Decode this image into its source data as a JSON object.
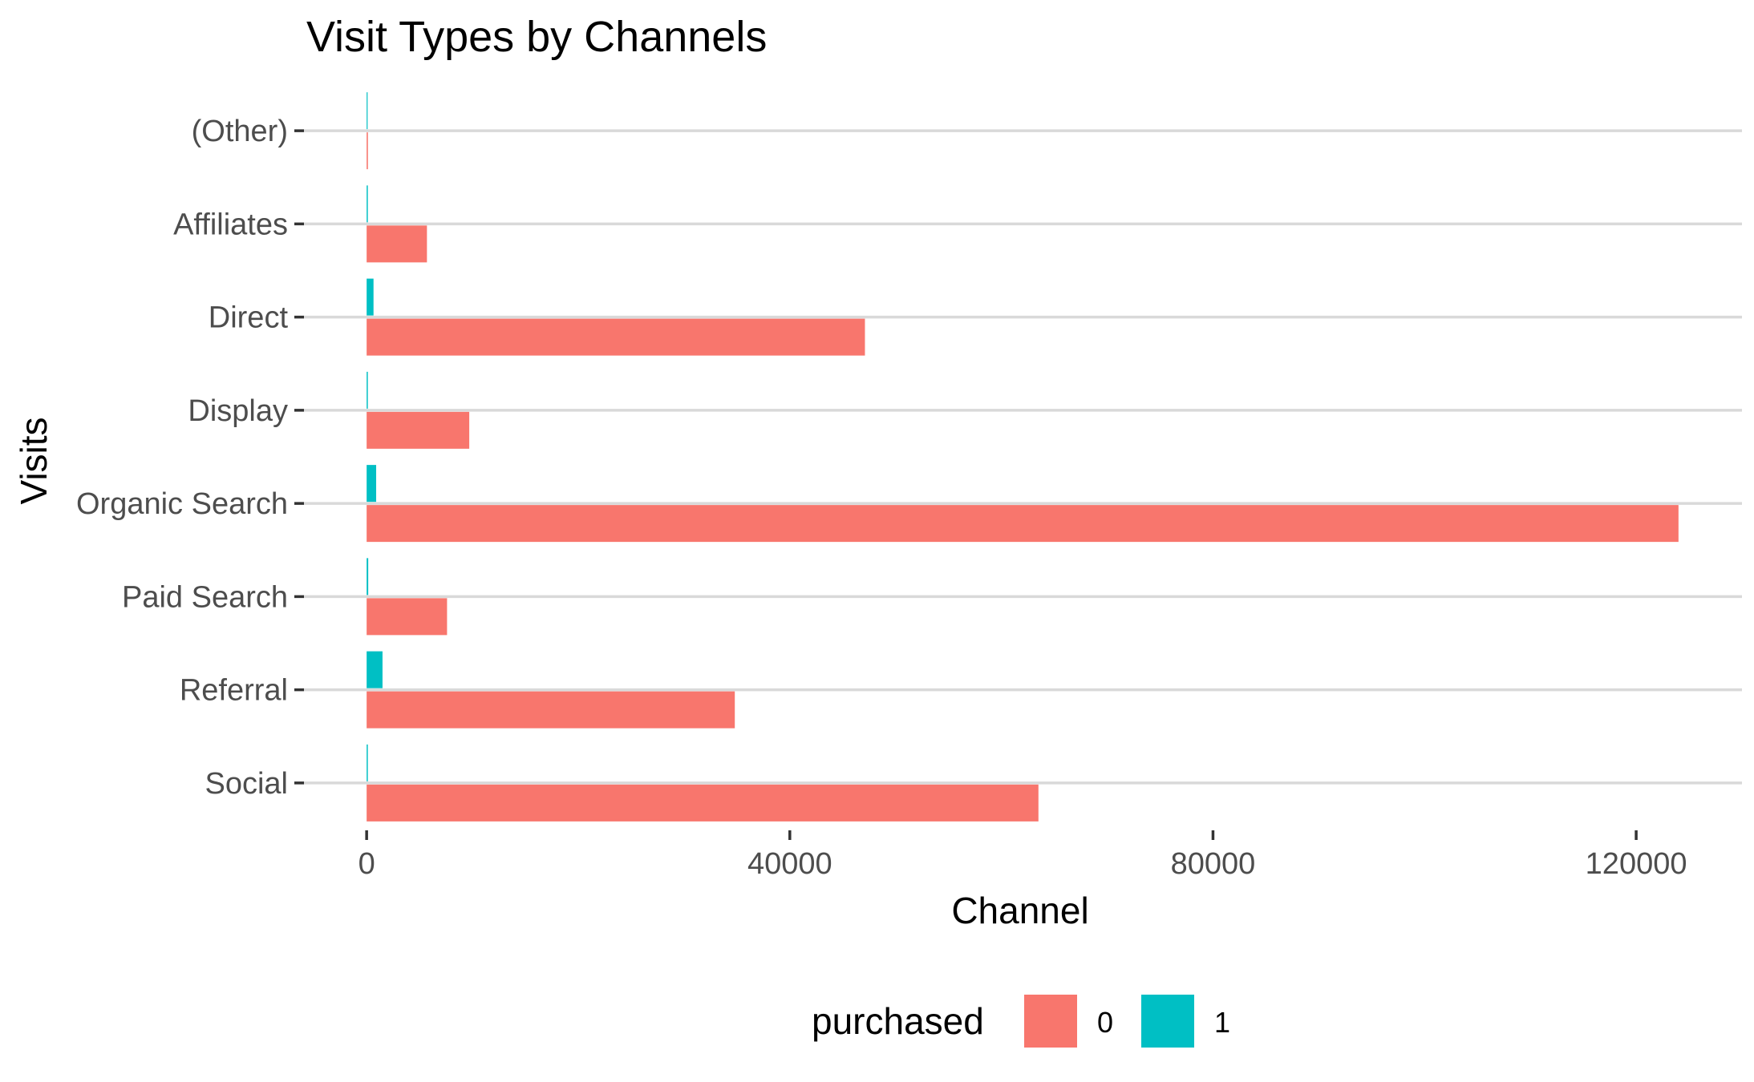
{
  "chart_data": {
    "type": "bar",
    "orientation": "horizontal",
    "title": "Visit Types by Channels",
    "xlabel": "Channel",
    "ylabel": "Visits",
    "categories": [
      "Social",
      "Referral",
      "Paid Search",
      "Organic Search",
      "Display",
      "Direct",
      "Affiliates",
      "(Other)"
    ],
    "series": [
      {
        "name": "0",
        "color": "#F8766D",
        "values": [
          63500,
          34800,
          7600,
          124000,
          9700,
          47100,
          5700,
          120
        ]
      },
      {
        "name": "1",
        "color": "#00BFC4",
        "values": [
          100,
          1500,
          150,
          900,
          60,
          650,
          10,
          0
        ]
      }
    ],
    "xticks": [
      0,
      40000,
      80000,
      120000
    ],
    "xlim": [
      -6000,
      130000
    ],
    "grid": {
      "major_y": true,
      "major_x": false
    },
    "legend": {
      "title": "purchased",
      "position": "bottom",
      "entries": [
        "0",
        "1"
      ]
    }
  }
}
